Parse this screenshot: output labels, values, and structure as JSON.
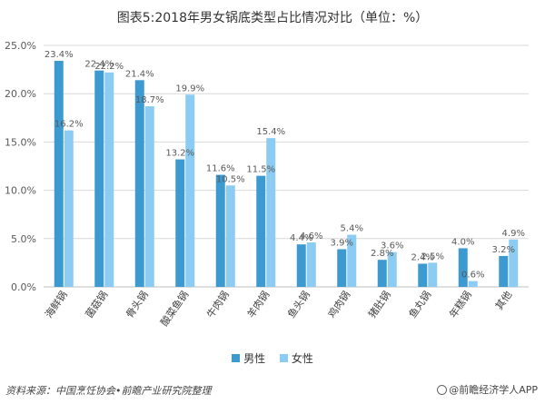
{
  "title": "图表5:2018年男女锅底类型占比情况对比（单位：%）",
  "source": "资料来源：中国烹饪协会•前瞻产业研究院整理",
  "brand": "@前瞻经济学人APP",
  "colors": {
    "male": "#3d9ad1",
    "female": "#8cccf2",
    "grid": "#d9d9d9",
    "axis": "#bfbfbf",
    "text": "#595959"
  },
  "chart_data": {
    "type": "bar",
    "title": "图表5:2018年男女锅底类型占比情况对比（单位：%）",
    "categories": [
      "海鲜锅",
      "菌菇锅",
      "骨头锅",
      "酸菜鱼锅",
      "牛肉锅",
      "羊肉锅",
      "鱼头锅",
      "鸡肉锅",
      "猪肚锅",
      "鱼丸锅",
      "年糕锅",
      "其他"
    ],
    "series": [
      {
        "name": "男性",
        "values": [
          23.4,
          22.4,
          21.4,
          13.2,
          11.6,
          11.5,
          4.4,
          3.9,
          2.8,
          2.4,
          4.0,
          3.2
        ]
      },
      {
        "name": "女性",
        "values": [
          16.2,
          22.2,
          18.7,
          19.9,
          10.5,
          15.4,
          4.6,
          5.4,
          3.6,
          2.5,
          0.6,
          4.9
        ]
      }
    ],
    "value_labels": [
      [
        "23.4%",
        "22.4%",
        "21.4%",
        "13.2%",
        "11.6%",
        "11.5%",
        "4.4%",
        "3.9%",
        "2.8%",
        "2.4%",
        "4.0%",
        "3.2%"
      ],
      [
        "16.2%",
        "22.2%",
        "18.7%",
        "19.9%",
        "10.5%",
        "15.4%",
        "4.6%",
        "5.4%",
        "3.6%",
        "2.5%",
        "0.6%",
        "4.9%"
      ]
    ],
    "yticks": [
      0,
      5,
      10,
      15,
      20,
      25
    ],
    "ytick_labels": [
      "0.0%",
      "5.0%",
      "10.0%",
      "15.0%",
      "20.0%",
      "25.0%"
    ],
    "ylim": [
      0,
      25
    ],
    "xlabel": "",
    "ylabel": "",
    "grid": true,
    "legend_position": "bottom"
  }
}
